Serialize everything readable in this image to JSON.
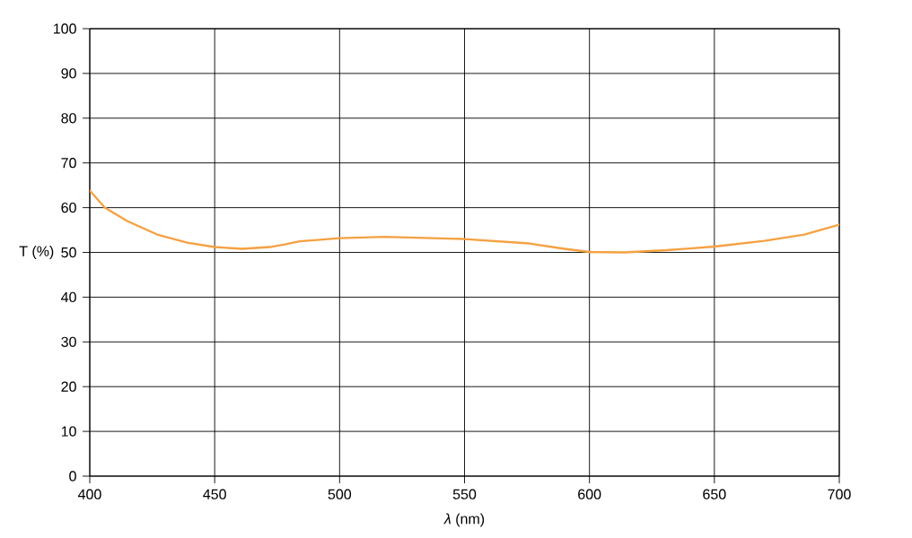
{
  "chart_data": {
    "type": "line",
    "xlabel": "*λ* (nm)",
    "ylabel": "T (%)",
    "x": [
      400,
      406,
      415,
      427,
      439,
      450,
      461,
      472,
      478,
      484,
      491,
      500,
      518,
      550,
      576,
      590,
      600,
      614,
      631,
      650,
      670,
      686,
      700
    ],
    "series": [
      {
        "color": "#f5a142",
        "values": [
          63.8,
          60,
          57.0,
          54.0,
          52.2,
          51.2,
          50.8,
          51.2,
          51.8,
          52.5,
          52.8,
          53.2,
          53.5,
          53.0,
          52.0,
          50.8,
          50.1,
          50.0,
          50.5,
          51.3,
          52.6,
          54.0,
          56.2
        ]
      }
    ],
    "xlim": [
      400,
      700
    ],
    "ylim": [
      0,
      100
    ],
    "xticks": [
      400,
      450,
      500,
      550,
      600,
      650,
      700
    ],
    "yticks": [
      0,
      10,
      20,
      30,
      40,
      50,
      60,
      70,
      80,
      90,
      100
    ],
    "grid": true,
    "line_style": "solid"
  }
}
